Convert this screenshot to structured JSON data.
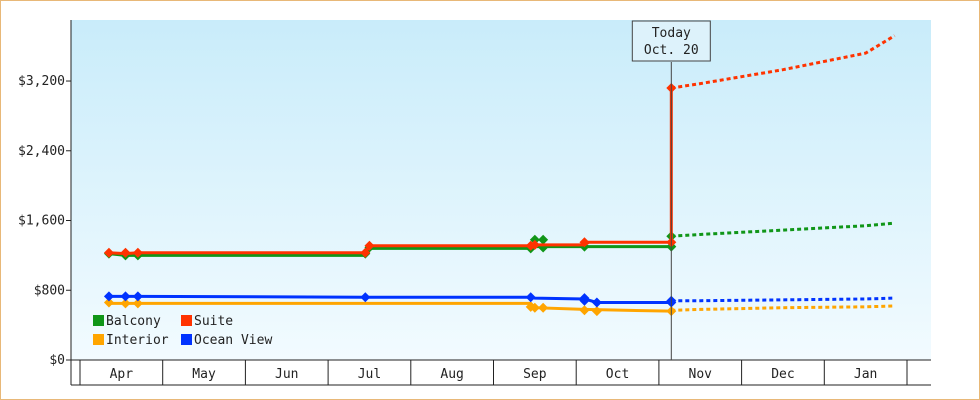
{
  "chart_data": {
    "type": "line",
    "title": "",
    "xlabel": "",
    "ylabel": "",
    "x_categories": [
      "Apr",
      "May",
      "Jun",
      "Jul",
      "Aug",
      "Sep",
      "Oct",
      "Nov",
      "Dec",
      "Jan"
    ],
    "ylim": [
      0,
      3900
    ],
    "yticks": [
      {
        "value": 0,
        "label": "$0"
      },
      {
        "value": 800,
        "label": "$800"
      },
      {
        "value": 1600,
        "label": "$1,600"
      },
      {
        "value": 2400,
        "label": "$2,400"
      },
      {
        "value": 3200,
        "label": "$3,200"
      }
    ],
    "today": {
      "line1": "Today",
      "line2": "Oct. 20",
      "x": 6.65
    },
    "legend_position": "bottom-left",
    "series": [
      {
        "name": "Balcony",
        "color": "#109618",
        "points": [
          [
            -0.15,
            1220
          ],
          [
            0.05,
            1200
          ],
          [
            0.2,
            1200
          ],
          [
            2.95,
            1200
          ],
          [
            3.0,
            1280
          ],
          [
            4.95,
            1280
          ],
          [
            5.0,
            1300
          ],
          [
            5.6,
            1300
          ],
          [
            5.65,
            1300
          ],
          [
            6.65,
            1300
          ],
          [
            6.65,
            1420
          ]
        ],
        "markers": [
          [
            -0.15,
            1220
          ],
          [
            0.05,
            1200
          ],
          [
            0.2,
            1200
          ],
          [
            2.95,
            1220
          ],
          [
            3.0,
            1290
          ],
          [
            4.95,
            1280
          ],
          [
            5.0,
            1380
          ],
          [
            5.1,
            1380
          ],
          [
            5.1,
            1290
          ],
          [
            5.6,
            1300
          ],
          [
            6.65,
            1300
          ],
          [
            6.65,
            1420
          ]
        ],
        "projection": [
          [
            6.65,
            1420
          ],
          [
            7.0,
            1440
          ],
          [
            8.0,
            1490
          ],
          [
            9.0,
            1540
          ],
          [
            9.35,
            1570
          ]
        ]
      },
      {
        "name": "Suite",
        "color": "#ff3300",
        "points": [
          [
            -0.15,
            1230
          ],
          [
            0.05,
            1220
          ],
          [
            0.2,
            1230
          ],
          [
            2.95,
            1230
          ],
          [
            3.0,
            1310
          ],
          [
            4.95,
            1310
          ],
          [
            5.0,
            1320
          ],
          [
            5.6,
            1320
          ],
          [
            5.65,
            1350
          ],
          [
            6.65,
            1350
          ],
          [
            6.65,
            3120
          ]
        ],
        "markers": [
          [
            -0.15,
            1230
          ],
          [
            0.05,
            1230
          ],
          [
            0.2,
            1230
          ],
          [
            2.95,
            1230
          ],
          [
            3.0,
            1310
          ],
          [
            4.95,
            1310
          ],
          [
            5.0,
            1320
          ],
          [
            5.6,
            1350
          ],
          [
            6.65,
            1350
          ],
          [
            6.65,
            3120
          ]
        ],
        "projection": [
          [
            6.65,
            3120
          ],
          [
            7.0,
            3170
          ],
          [
            8.0,
            3330
          ],
          [
            9.0,
            3520
          ],
          [
            9.35,
            3720
          ]
        ]
      },
      {
        "name": "Interior",
        "color": "#ffa500",
        "points": [
          [
            -0.15,
            650
          ],
          [
            0.05,
            650
          ],
          [
            0.2,
            650
          ],
          [
            4.95,
            650
          ],
          [
            5.0,
            600
          ],
          [
            5.6,
            580
          ],
          [
            6.65,
            560
          ]
        ],
        "markers": [
          [
            -0.15,
            660
          ],
          [
            0.05,
            650
          ],
          [
            0.2,
            650
          ],
          [
            4.95,
            610
          ],
          [
            5.0,
            600
          ],
          [
            5.1,
            600
          ],
          [
            5.6,
            570
          ],
          [
            5.75,
            560
          ],
          [
            6.65,
            560
          ]
        ],
        "projection": [
          [
            6.65,
            570
          ],
          [
            7.0,
            580
          ],
          [
            8.0,
            600
          ],
          [
            9.0,
            610
          ],
          [
            9.35,
            620
          ]
        ]
      },
      {
        "name": "Ocean View",
        "color": "#0033ff",
        "points": [
          [
            -0.15,
            730
          ],
          [
            0.05,
            730
          ],
          [
            0.2,
            730
          ],
          [
            2.95,
            720
          ],
          [
            4.95,
            720
          ],
          [
            5.0,
            710
          ],
          [
            5.6,
            700
          ],
          [
            5.75,
            660
          ],
          [
            6.65,
            660
          ]
        ],
        "markers": [
          [
            -0.15,
            730
          ],
          [
            0.05,
            730
          ],
          [
            0.2,
            730
          ],
          [
            2.95,
            720
          ],
          [
            4.95,
            720
          ],
          [
            5.6,
            710
          ],
          [
            5.6,
            680
          ],
          [
            5.75,
            660
          ],
          [
            6.65,
            660
          ],
          [
            6.65,
            680
          ]
        ],
        "projection": [
          [
            6.65,
            680
          ],
          [
            7.0,
            680
          ],
          [
            8.0,
            690
          ],
          [
            9.0,
            700
          ],
          [
            9.35,
            710
          ]
        ]
      }
    ]
  }
}
